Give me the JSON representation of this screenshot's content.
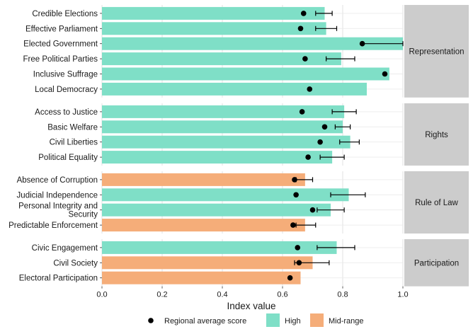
{
  "chart_data": {
    "type": "bar",
    "orientation": "horizontal",
    "xlabel": "Index value",
    "xlim": [
      0,
      1.0
    ],
    "xticks": [
      "0.0",
      "0.2",
      "0.4",
      "0.6",
      "0.8",
      "1.0"
    ],
    "grid": true,
    "legend_position": "bottom",
    "legend": {
      "point_label": "Regional average score",
      "categories": [
        {
          "name": "High",
          "color": "#7fdfc7"
        },
        {
          "name": "Mid-range",
          "color": "#f5ad79"
        }
      ]
    },
    "facets": [
      {
        "name": "Representation",
        "items": [
          {
            "label": "Credible Elections",
            "value": 0.74,
            "avg": 0.67,
            "err": [
              0.71,
              0.765
            ],
            "band": "High"
          },
          {
            "label": "Effective Parliament",
            "value": 0.745,
            "avg": 0.66,
            "err": [
              0.71,
              0.78
            ],
            "band": "High"
          },
          {
            "label": "Elected Government",
            "value": 1.0,
            "avg": 0.865,
            "err": [
              0.865,
              1.0
            ],
            "band": "High"
          },
          {
            "label": "Free Political Parties",
            "value": 0.795,
            "avg": 0.675,
            "err": [
              0.745,
              0.84
            ],
            "band": "High"
          },
          {
            "label": "Inclusive Suffrage",
            "value": 0.955,
            "avg": 0.94,
            "err": null,
            "band": "High"
          },
          {
            "label": "Local Democracy",
            "value": 0.88,
            "avg": 0.69,
            "err": null,
            "band": "High"
          }
        ]
      },
      {
        "name": "Rights",
        "items": [
          {
            "label": "Access to Justice",
            "value": 0.805,
            "avg": 0.665,
            "err": [
              0.765,
              0.845
            ],
            "band": "High"
          },
          {
            "label": "Basic Welfare",
            "value": 0.8,
            "avg": 0.74,
            "err": [
              0.775,
              0.825
            ],
            "band": "High"
          },
          {
            "label": "Civil Liberties",
            "value": 0.825,
            "avg": 0.725,
            "err": [
              0.79,
              0.855
            ],
            "band": "High"
          },
          {
            "label": "Political Equality",
            "value": 0.765,
            "avg": 0.685,
            "err": [
              0.725,
              0.805
            ],
            "band": "High"
          }
        ]
      },
      {
        "name": "Rule of Law",
        "items": [
          {
            "label": "Absence of Corruption",
            "value": 0.675,
            "avg": 0.64,
            "err": [
              0.645,
              0.7
            ],
            "band": "Mid-range"
          },
          {
            "label": "Judicial Independence",
            "value": 0.82,
            "avg": 0.645,
            "err": [
              0.76,
              0.875
            ],
            "band": "High"
          },
          {
            "label": "Personal Integrity and\nSecurity",
            "value": 0.76,
            "avg": 0.7,
            "err": [
              0.715,
              0.805
            ],
            "band": "High"
          },
          {
            "label": "Predictable Enforcement",
            "value": 0.675,
            "avg": 0.635,
            "err": [
              0.645,
              0.71
            ],
            "band": "Mid-range"
          }
        ]
      },
      {
        "name": "Participation",
        "items": [
          {
            "label": "Civic Engagement",
            "value": 0.78,
            "avg": 0.65,
            "err": [
              0.715,
              0.84
            ],
            "band": "High"
          },
          {
            "label": "Civil Society",
            "value": 0.7,
            "avg": 0.655,
            "err": [
              0.64,
              0.755
            ],
            "band": "Mid-range"
          },
          {
            "label": "Electoral Participation",
            "value": 0.66,
            "avg": 0.625,
            "err": null,
            "band": "Mid-range"
          }
        ]
      }
    ]
  }
}
